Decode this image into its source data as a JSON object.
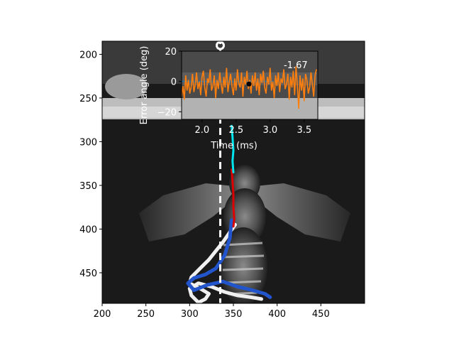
{
  "chart_data": [
    {
      "type": "image",
      "title": "",
      "xlim": [
        200,
        500
      ],
      "ylim": [
        485,
        185
      ],
      "x_ticks": [
        "200",
        "250",
        "300",
        "350",
        "400",
        "450"
      ],
      "y_ticks": [
        "200",
        "250",
        "300",
        "350",
        "400",
        "450"
      ],
      "reference_line_x": 335,
      "trajectories": [
        {
          "color": "#f0f0f0",
          "x": [
            352,
            345,
            338,
            330,
            322,
            312,
            302,
            300,
            312,
            322,
            318,
            310,
            302,
            300,
            310,
            325,
            340,
            355,
            370,
            382
          ],
          "y": [
            395,
            405,
            415,
            425,
            435,
            445,
            455,
            462,
            468,
            474,
            480,
            484,
            476,
            468,
            462,
            466,
            472,
            476,
            478,
            480
          ]
        },
        {
          "color": "#2255cc",
          "x": [
            348,
            346,
            340,
            330,
            318,
            305,
            298,
            305,
            320,
            338,
            355,
            372,
            386,
            392
          ],
          "y": [
            390,
            410,
            430,
            445,
            452,
            456,
            462,
            470,
            464,
            460,
            466,
            470,
            474,
            478
          ]
        },
        {
          "color": "#dd0000",
          "x": [
            348,
            349,
            350,
            350,
            351,
            350
          ],
          "y": [
            332,
            345,
            360,
            375,
            388,
            397
          ]
        },
        {
          "color": "#00e5ee",
          "x": [
            348,
            349,
            350,
            349,
            350
          ],
          "y": [
            282,
            295,
            310,
            322,
            335
          ]
        }
      ]
    },
    {
      "type": "line",
      "title": "",
      "xlabel": "Time (ms)",
      "ylabel": "Error angle (deg)",
      "xlim": [
        1.7,
        3.7
      ],
      "ylim": [
        -25,
        20
      ],
      "x_ticks": [
        "2.0",
        "2.5",
        "3.0",
        "3.5"
      ],
      "y_ticks": [
        "20",
        "0",
        "−20"
      ],
      "annotation": "-1.67",
      "marker": {
        "x": 2.69,
        "y": -1.67
      },
      "zero_line": {
        "x": [
          1.7,
          3.05
        ],
        "y": 0,
        "color": "#1f77b4"
      },
      "series": [
        {
          "color": "#ff7f0e",
          "x": [
            1.7,
            1.72,
            1.74,
            1.76,
            1.78,
            1.8,
            1.82,
            1.84,
            1.86,
            1.88,
            1.9,
            1.92,
            1.94,
            1.96,
            1.98,
            2.0,
            2.02,
            2.04,
            2.06,
            2.08,
            2.1,
            2.12,
            2.14,
            2.16,
            2.18,
            2.2,
            2.22,
            2.24,
            2.26,
            2.28,
            2.3,
            2.32,
            2.34,
            2.36,
            2.38,
            2.4,
            2.42,
            2.44,
            2.46,
            2.48,
            2.5,
            2.52,
            2.54,
            2.56,
            2.58,
            2.6,
            2.62,
            2.64,
            2.66,
            2.68,
            2.7,
            2.72,
            2.74,
            2.76,
            2.78,
            2.8,
            2.82,
            2.84,
            2.86,
            2.88,
            2.9,
            2.92,
            2.94,
            2.96,
            2.98,
            3.0,
            3.02,
            3.04,
            3.06,
            3.08,
            3.1,
            3.12,
            3.14,
            3.16,
            3.18,
            3.2,
            3.22,
            3.24,
            3.26,
            3.28,
            3.3,
            3.32,
            3.34,
            3.36,
            3.38,
            3.4,
            3.42,
            3.44,
            3.46,
            3.48,
            3.5,
            3.52,
            3.54,
            3.56,
            3.58,
            3.6,
            3.62,
            3.64,
            3.66,
            3.68
          ],
          "y": [
            -10,
            -3,
            -12,
            4,
            -6,
            1,
            -8,
            -4,
            5,
            -7,
            -2,
            6,
            -5,
            0,
            -9,
            3,
            7,
            -4,
            -10,
            2,
            -1,
            8,
            -6,
            -3,
            4,
            -11,
            1,
            -5,
            6,
            -2,
            -8,
            3,
            -4,
            9,
            -7,
            0,
            5,
            -3,
            -9,
            2,
            -6,
            8,
            -1,
            -4,
            6,
            -10,
            3,
            -2,
            7,
            -5,
            1,
            -8,
            4,
            -3,
            6,
            -6,
            2,
            -9,
            5,
            -1,
            7,
            -4,
            -8,
            3,
            -2,
            9,
            -6,
            0,
            -11,
            4,
            -3,
            6,
            -7,
            2,
            -1,
            8,
            -5,
            -2,
            5,
            -12,
            3,
            -4,
            7,
            -9,
            10,
            -3,
            -18,
            4,
            -6,
            2,
            -13,
            5,
            1,
            -8,
            -4,
            6,
            -2,
            -10,
            4,
            8
          ]
        }
      ]
    }
  ]
}
